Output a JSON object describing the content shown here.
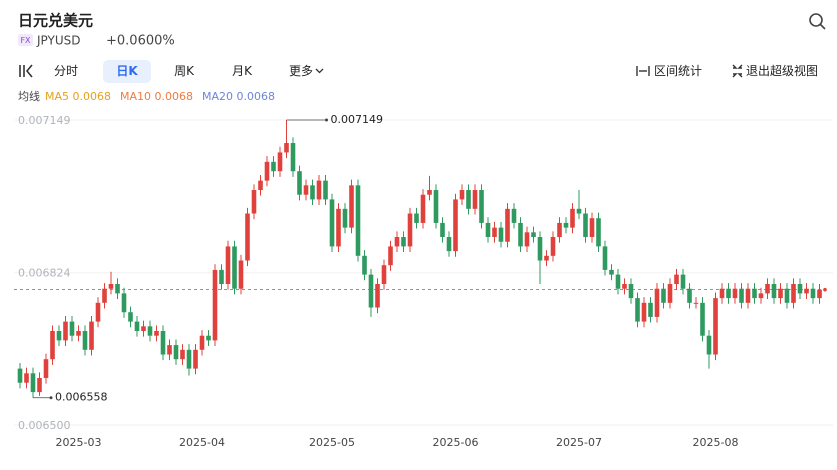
{
  "header": {
    "title": "日元兑美元",
    "badge": "FX",
    "symbol": "JPYUSD",
    "change": "+0.0600%"
  },
  "toolbar": {
    "tabs": [
      "分时",
      "日K",
      "周K",
      "月K",
      "更多"
    ],
    "active": 1,
    "range": "区间统计",
    "exit": "退出超级视图"
  },
  "indicators": {
    "label": "均线",
    "items": [
      {
        "name": "MA5 0.0068",
        "color": "#e3a21a"
      },
      {
        "name": "MA10 0.0068",
        "color": "#f07b3f"
      },
      {
        "name": "MA20 0.0068",
        "color": "#6c86d6"
      }
    ]
  },
  "chart_data": {
    "type": "candlestick",
    "up_color": "#e0413c",
    "down_color": "#2f9a5f",
    "ylim": [
      0.0065,
      0.007149
    ],
    "yticks": [
      0.007149,
      0.006824,
      {
        "value": 0.0065,
        "label": "0.006500"
      }
    ],
    "xticks": [
      {
        "value": 9,
        "label": "2025-03"
      },
      {
        "value": 28,
        "label": "2025-04"
      },
      {
        "value": 48,
        "label": "2025-05"
      },
      {
        "value": 67,
        "label": "2025-06"
      },
      {
        "value": 86,
        "label": "2025-07"
      },
      {
        "value": 107,
        "label": "2025-08"
      }
    ],
    "last_price_line": true,
    "mark_extremes": true,
    "open": [
      0.00662,
      0.00659,
      0.00661,
      0.00657,
      0.0066,
      0.00664,
      0.0067,
      0.00668,
      0.00672,
      0.00669,
      0.0067,
      0.00666,
      0.00672,
      0.00676,
      0.00679,
      0.0068,
      0.00678,
      0.00674,
      0.00672,
      0.0067,
      0.00671,
      0.00669,
      0.0067,
      0.00665,
      0.00667,
      0.00664,
      0.00666,
      0.00662,
      0.00666,
      0.00669,
      0.00668,
      0.00683,
      0.0068,
      0.00688,
      0.00679,
      0.00685,
      0.00695,
      0.007,
      0.00702,
      0.00706,
      0.00704,
      0.00708,
      0.0071,
      0.00704,
      0.00699,
      0.00701,
      0.00698,
      0.00702,
      0.00698,
      0.00688,
      0.00696,
      0.00692,
      0.00701,
      0.00686,
      0.00682,
      0.00675,
      0.0068,
      0.00684,
      0.00688,
      0.0069,
      0.00688,
      0.00695,
      0.00693,
      0.00699,
      0.007,
      0.00693,
      0.0069,
      0.00687,
      0.00698,
      0.007,
      0.00696,
      0.007,
      0.00693,
      0.0069,
      0.00692,
      0.00689,
      0.00696,
      0.00693,
      0.00688,
      0.00691,
      0.0069,
      0.00685,
      0.00686,
      0.0069,
      0.00693,
      0.00692,
      0.00696,
      0.00695,
      0.0069,
      0.00694,
      0.00688,
      0.00683,
      0.00682,
      0.00679,
      0.0068,
      0.00677,
      0.00672,
      0.00676,
      0.00673,
      0.00679,
      0.00676,
      0.0068,
      0.00682,
      0.00679,
      0.00676,
      0.00676,
      0.00669,
      0.00665,
      0.00677,
      0.00679,
      0.00677,
      0.00679,
      0.00676,
      0.00679,
      0.00677,
      0.00678,
      0.0068,
      0.00677,
      0.00679,
      0.00676,
      0.0068,
      0.00678,
      0.00679,
      0.00677
    ],
    "high": [
      0.006632,
      0.006622,
      0.006622,
      0.006612,
      0.006652,
      0.006712,
      0.006712,
      0.006732,
      0.006732,
      0.006712,
      0.006712,
      0.006732,
      0.006772,
      0.006802,
      0.006826,
      0.006812,
      0.006792,
      0.006752,
      0.006732,
      0.006722,
      0.006722,
      0.006712,
      0.006712,
      0.006682,
      0.006682,
      0.006672,
      0.006672,
      0.006672,
      0.006702,
      0.006702,
      0.006842,
      0.006842,
      0.006892,
      0.006892,
      0.006862,
      0.006962,
      0.007012,
      0.007032,
      0.007072,
      0.007072,
      0.007092,
      0.007149,
      0.007112,
      0.007052,
      0.007022,
      0.007022,
      0.007032,
      0.007032,
      0.006992,
      0.006972,
      0.006972,
      0.007022,
      0.007022,
      0.006872,
      0.006832,
      0.006812,
      0.006852,
      0.006892,
      0.006912,
      0.006912,
      0.006962,
      0.006962,
      0.007002,
      0.00703,
      0.007012,
      0.006942,
      0.006912,
      0.006992,
      0.007012,
      0.007012,
      0.007012,
      0.007012,
      0.006942,
      0.006932,
      0.006932,
      0.006972,
      0.006972,
      0.006942,
      0.006922,
      0.006922,
      0.006912,
      0.006872,
      0.006912,
      0.006942,
      0.006942,
      0.006972,
      0.007,
      0.006962,
      0.006952,
      0.006952,
      0.006892,
      0.006842,
      0.006832,
      0.006812,
      0.006812,
      0.006782,
      0.006772,
      0.006772,
      0.006802,
      0.006802,
      0.006812,
      0.006832,
      0.006832,
      0.006802,
      0.006772,
      0.006772,
      0.006702,
      0.006782,
      0.006802,
      0.006802,
      0.006802,
      0.006802,
      0.006802,
      0.006802,
      0.006792,
      0.006812,
      0.006812,
      0.006802,
      0.006802,
      0.006812,
      0.006812,
      0.006802,
      0.006802,
      0.0068
    ],
    "low": [
      0.006578,
      0.006578,
      0.006558,
      0.006562,
      0.006588,
      0.006628,
      0.006668,
      0.006668,
      0.006678,
      0.006678,
      0.006648,
      0.006648,
      0.006708,
      0.006748,
      0.006778,
      0.006768,
      0.006728,
      0.006708,
      0.006688,
      0.006688,
      0.006678,
      0.006678,
      0.006638,
      0.006638,
      0.006628,
      0.006628,
      0.006605,
      0.006608,
      0.006648,
      0.006668,
      0.006668,
      0.006788,
      0.006788,
      0.006778,
      0.006778,
      0.006838,
      0.006938,
      0.006988,
      0.007008,
      0.007028,
      0.007028,
      0.007068,
      0.007028,
      0.006978,
      0.006978,
      0.006968,
      0.006968,
      0.006968,
      0.006868,
      0.006868,
      0.006908,
      0.006908,
      0.006848,
      0.006808,
      0.00673,
      0.006738,
      0.006788,
      0.006828,
      0.006868,
      0.006868,
      0.006868,
      0.006918,
      0.006918,
      0.006978,
      0.006918,
      0.006888,
      0.006858,
      0.006858,
      0.006968,
      0.006948,
      0.006948,
      0.006918,
      0.006888,
      0.006888,
      0.006878,
      0.006878,
      0.006918,
      0.006868,
      0.006868,
      0.006888,
      0.0068,
      0.006838,
      0.006848,
      0.006888,
      0.006908,
      0.006908,
      0.006938,
      0.006888,
      0.006888,
      0.006868,
      0.006818,
      0.006808,
      0.006778,
      0.006778,
      0.006758,
      0.006708,
      0.006708,
      0.006718,
      0.006718,
      0.006748,
      0.006748,
      0.006788,
      0.006778,
      0.006748,
      0.006748,
      0.006678,
      0.00662,
      0.006638,
      0.006758,
      0.006758,
      0.006758,
      0.006748,
      0.006748,
      0.006758,
      0.006758,
      0.006768,
      0.006758,
      0.006758,
      0.006748,
      0.006748,
      0.006768,
      0.006768,
      0.006758,
      0.006758
    ],
    "close": [
      0.00659,
      0.00661,
      0.00657,
      0.0066,
      0.00664,
      0.0067,
      0.00668,
      0.00672,
      0.00669,
      0.0067,
      0.00666,
      0.00672,
      0.00676,
      0.00679,
      0.0068,
      0.00678,
      0.00674,
      0.00672,
      0.0067,
      0.00671,
      0.00669,
      0.0067,
      0.00665,
      0.00667,
      0.00664,
      0.00666,
      0.00662,
      0.00666,
      0.00669,
      0.00668,
      0.00683,
      0.0068,
      0.00688,
      0.00679,
      0.00685,
      0.00695,
      0.007,
      0.00702,
      0.00706,
      0.00704,
      0.00708,
      0.0071,
      0.00704,
      0.00699,
      0.00701,
      0.00698,
      0.00702,
      0.00698,
      0.00688,
      0.00696,
      0.00692,
      0.00701,
      0.00686,
      0.00682,
      0.00675,
      0.0068,
      0.00684,
      0.00688,
      0.0069,
      0.00688,
      0.00695,
      0.00693,
      0.00699,
      0.007,
      0.00693,
      0.0069,
      0.00687,
      0.00698,
      0.007,
      0.00696,
      0.007,
      0.00693,
      0.0069,
      0.00692,
      0.00689,
      0.00696,
      0.00693,
      0.00688,
      0.00691,
      0.0069,
      0.00685,
      0.00686,
      0.0069,
      0.00693,
      0.00692,
      0.00696,
      0.00695,
      0.0069,
      0.00694,
      0.00688,
      0.00683,
      0.00682,
      0.00679,
      0.0068,
      0.00677,
      0.00672,
      0.00676,
      0.00673,
      0.00679,
      0.00676,
      0.0068,
      0.00682,
      0.00679,
      0.00676,
      0.00676,
      0.00669,
      0.00665,
      0.00677,
      0.00679,
      0.00677,
      0.00679,
      0.00676,
      0.00679,
      0.00677,
      0.00678,
      0.0068,
      0.00677,
      0.00679,
      0.00676,
      0.0068,
      0.00678,
      0.00679,
      0.00677,
      0.006788
    ]
  }
}
